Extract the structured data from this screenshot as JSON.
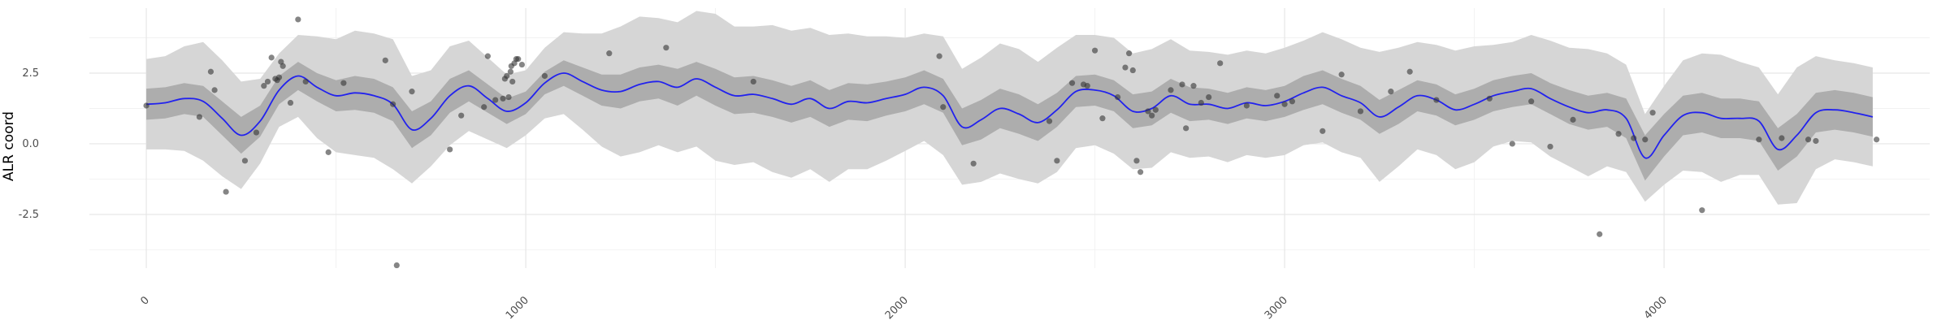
{
  "chart_data": {
    "type": "line",
    "ylabel": "ALR coord",
    "xlim": [
      -150,
      4700
    ],
    "ylim": [
      -4.4,
      4.8
    ],
    "x_ticks": [
      0,
      1000,
      2000,
      3000,
      4000
    ],
    "x_tick_labels": [
      "0",
      "1000",
      "2000",
      "3000",
      "4000"
    ],
    "y_ticks": [
      -2.5,
      0.0,
      2.5
    ],
    "y_tick_labels": [
      "-2.5",
      "0.0",
      "2.5"
    ],
    "grid": true,
    "colors": {
      "mean_line": "#2222ee",
      "inner_band": "#adadad",
      "outer_band": "#d6d6d6",
      "points": "#333333",
      "grid_major": "#e6e6e6",
      "grid_minor": "#f2f2f2"
    },
    "series": [
      {
        "type": "line",
        "x": [
          0,
          50,
          100,
          150,
          200,
          250,
          300,
          350,
          400,
          450,
          500,
          550,
          600,
          650,
          700,
          750,
          800,
          850,
          900,
          950,
          1000,
          1050,
          1100,
          1150,
          1200,
          1250,
          1300,
          1350,
          1400,
          1450,
          1500,
          1550,
          1600,
          1650,
          1700,
          1750,
          1800,
          1850,
          1900,
          1950,
          2000,
          2050,
          2100,
          2150,
          2200,
          2250,
          2300,
          2350,
          2400,
          2450,
          2500,
          2550,
          2600,
          2650,
          2700,
          2750,
          2800,
          2850,
          2900,
          2950,
          3000,
          3050,
          3100,
          3150,
          3200,
          3250,
          3300,
          3350,
          3400,
          3450,
          3500,
          3550,
          3600,
          3650,
          3700,
          3750,
          3800,
          3850,
          3900,
          3950,
          4000,
          4050,
          4100,
          4150,
          4200,
          4250,
          4300,
          4350,
          4400,
          4450,
          4500,
          4550
        ],
        "values": [
          1.4,
          1.45,
          1.6,
          1.5,
          0.9,
          0.3,
          0.8,
          1.9,
          2.4,
          2.0,
          1.7,
          1.8,
          1.7,
          1.4,
          0.5,
          0.9,
          1.7,
          2.05,
          1.6,
          1.15,
          1.45,
          2.15,
          2.5,
          2.2,
          1.9,
          1.85,
          2.1,
          2.2,
          2.0,
          2.3,
          2.0,
          1.7,
          1.75,
          1.6,
          1.4,
          1.6,
          1.25,
          1.5,
          1.45,
          1.6,
          1.75,
          2.0,
          1.7,
          0.6,
          0.85,
          1.25,
          1.05,
          0.75,
          1.2,
          1.85,
          1.9,
          1.7,
          1.15,
          1.25,
          1.7,
          1.4,
          1.4,
          1.25,
          1.45,
          1.35,
          1.5,
          1.8,
          2.0,
          1.7,
          1.45,
          0.95,
          1.3,
          1.7,
          1.55,
          1.2,
          1.4,
          1.7,
          1.85,
          1.95,
          1.6,
          1.3,
          1.1,
          1.2,
          0.9,
          -0.5,
          0.3,
          1.0,
          1.1,
          0.9,
          0.9,
          0.8,
          -0.2,
          0.3,
          1.1,
          1.2,
          1.1,
          0.95
        ],
        "inner_half_width": [
          0.55,
          0.55,
          0.55,
          0.55,
          0.6,
          0.65,
          0.55,
          0.5,
          0.5,
          0.5,
          0.55,
          0.6,
          0.6,
          0.6,
          0.65,
          0.6,
          0.6,
          0.55,
          0.5,
          0.45,
          0.4,
          0.4,
          0.45,
          0.5,
          0.55,
          0.6,
          0.6,
          0.6,
          0.65,
          0.6,
          0.65,
          0.65,
          0.65,
          0.65,
          0.65,
          0.65,
          0.65,
          0.65,
          0.65,
          0.6,
          0.6,
          0.6,
          0.6,
          0.65,
          0.7,
          0.7,
          0.7,
          0.65,
          0.6,
          0.55,
          0.55,
          0.55,
          0.6,
          0.6,
          0.6,
          0.6,
          0.55,
          0.55,
          0.55,
          0.55,
          0.55,
          0.6,
          0.6,
          0.6,
          0.6,
          0.6,
          0.6,
          0.55,
          0.55,
          0.55,
          0.55,
          0.55,
          0.55,
          0.55,
          0.55,
          0.6,
          0.6,
          0.6,
          0.7,
          0.8,
          0.75,
          0.7,
          0.7,
          0.7,
          0.7,
          0.7,
          0.75,
          0.75,
          0.7,
          0.7,
          0.7,
          0.7
        ],
        "outer_half_width": [
          1.6,
          1.65,
          1.85,
          2.1,
          2.05,
          1.9,
          1.5,
          1.3,
          1.45,
          1.8,
          2.0,
          2.2,
          2.2,
          2.3,
          1.9,
          1.7,
          1.75,
          1.6,
          1.45,
          1.3,
          1.15,
          1.25,
          1.45,
          1.7,
          2.0,
          2.3,
          2.4,
          2.25,
          2.3,
          2.4,
          2.6,
          2.45,
          2.4,
          2.6,
          2.6,
          2.5,
          2.6,
          2.4,
          2.35,
          2.2,
          2.0,
          1.9,
          2.1,
          2.05,
          2.2,
          2.3,
          2.3,
          2.15,
          2.2,
          2.0,
          1.95,
          2.05,
          2.05,
          2.1,
          2.0,
          1.9,
          1.85,
          1.9,
          1.85,
          1.85,
          1.9,
          1.85,
          1.95,
          2.0,
          1.95,
          2.3,
          2.1,
          1.9,
          1.95,
          2.1,
          2.05,
          1.8,
          1.75,
          1.9,
          2.05,
          2.1,
          2.25,
          2.0,
          1.9,
          1.55,
          1.75,
          1.95,
          2.1,
          2.25,
          2.0,
          1.9,
          1.95,
          2.4,
          2.0,
          1.75,
          1.75,
          1.75
        ]
      },
      {
        "type": "scatter",
        "x": [
          0,
          140,
          170,
          180,
          210,
          260,
          290,
          310,
          320,
          330,
          340,
          345,
          350,
          355,
          360,
          380,
          400,
          420,
          480,
          520,
          630,
          650,
          660,
          700,
          800,
          830,
          890,
          900,
          920,
          940,
          945,
          950,
          955,
          960,
          962,
          965,
          970,
          975,
          980,
          990,
          1050,
          1220,
          1370,
          1600,
          2090,
          2100,
          2180,
          2380,
          2400,
          2440,
          2470,
          2480,
          2500,
          2520,
          2560,
          2580,
          2590,
          2600,
          2610,
          2620,
          2640,
          2650,
          2660,
          2700,
          2730,
          2740,
          2760,
          2780,
          2800,
          2830,
          2900,
          2980,
          3000,
          3020,
          3100,
          3150,
          3200,
          3280,
          3330,
          3400,
          3540,
          3600,
          3650,
          3700,
          3760,
          3830,
          3880,
          3920,
          3950,
          3970,
          4100,
          4250,
          4310,
          4380,
          4400,
          4560
        ],
        "values": [
          1.35,
          0.95,
          2.55,
          1.9,
          -1.7,
          -0.6,
          0.4,
          2.05,
          2.2,
          3.05,
          2.3,
          2.25,
          2.35,
          2.9,
          2.75,
          1.45,
          4.4,
          2.2,
          -0.3,
          2.15,
          2.95,
          1.4,
          -4.3,
          1.85,
          -0.2,
          1.0,
          1.3,
          3.1,
          1.55,
          1.6,
          2.3,
          2.4,
          1.65,
          2.55,
          2.75,
          2.2,
          2.85,
          3.0,
          3.0,
          2.8,
          2.4,
          3.2,
          3.4,
          2.2,
          3.1,
          1.3,
          -0.7,
          0.8,
          -0.6,
          2.15,
          2.1,
          2.05,
          3.3,
          0.9,
          1.65,
          2.7,
          3.2,
          2.6,
          -0.6,
          -1.0,
          1.15,
          1.0,
          1.2,
          1.9,
          2.1,
          0.55,
          2.05,
          1.45,
          1.65,
          2.85,
          1.35,
          1.7,
          1.4,
          1.5,
          0.45,
          2.45,
          1.15,
          1.85,
          2.55,
          1.55,
          1.6,
          0.0,
          1.5,
          -0.1,
          0.85,
          -3.2,
          0.35,
          0.2,
          0.15,
          1.1,
          -2.35,
          0.15,
          0.2,
          0.15,
          0.1,
          0.15
        ]
      }
    ]
  }
}
